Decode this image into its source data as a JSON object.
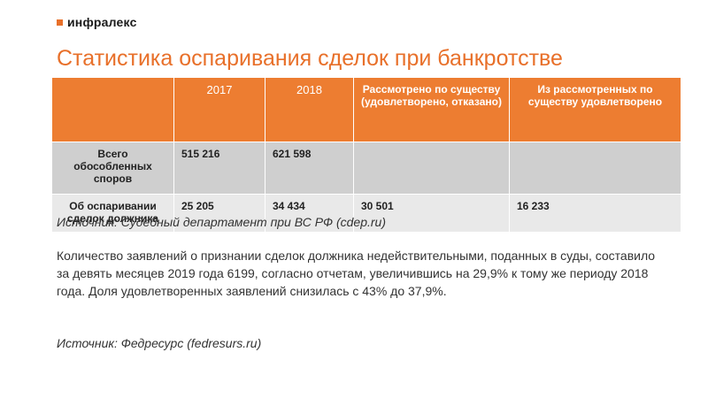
{
  "brand": {
    "name": "инфралекс",
    "accent": "#e8702a"
  },
  "title": "Статистика оспаривания сделок при банкротстве",
  "table": {
    "headers": [
      "",
      "2017",
      "2018",
      "Рассмотрено по существу (удовлетворено, отказано)",
      "Из рассмотренных по существу удовлетворено"
    ],
    "rows": [
      [
        "Всего обособленных споров",
        "515 216",
        "621 598",
        "",
        ""
      ],
      [
        "Об оспаривании сделок должника",
        "25 205",
        "34 434",
        "30 501",
        "16 233"
      ]
    ],
    "header_color": "#ed7d31"
  },
  "source1": "Источник: Судебный департамент при ВС РФ (cdep.ru)",
  "paragraph": "Количество заявлений о признании сделок должника недействительными, поданных в суды, составило за девять месяцев 2019 года 6199, согласно отчетам, увеличившись на 29,9% к тому же периоду 2018 года. Доля удовлетворенных заявлений снизилась с 43% до 37,9%.",
  "source2": "Источник: Федресурс (fedresurs.ru)"
}
